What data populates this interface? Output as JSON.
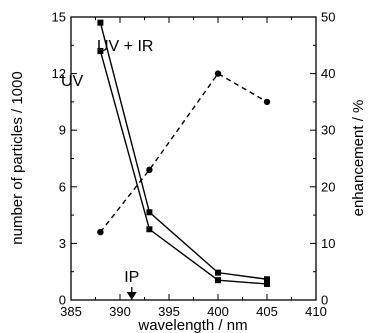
{
  "chart_data": {
    "type": "line",
    "title": "",
    "xlabel": "wavelength / nm",
    "ylabel_left": "number of particles / 1000",
    "ylabel_right": "enhancement / %",
    "xlim": [
      385,
      410
    ],
    "ylim_left": [
      0,
      15
    ],
    "ylim_right": [
      0,
      50
    ],
    "x_ticks": [
      385,
      390,
      395,
      400,
      405,
      410
    ],
    "y_left_ticks": [
      0,
      3,
      6,
      9,
      12,
      15
    ],
    "y_right_ticks": [
      0,
      10,
      20,
      30,
      40,
      50
    ],
    "grid": false,
    "series": [
      {
        "name": "UV + IR",
        "axis": "left",
        "style": "solid",
        "marker": "square",
        "x": [
          388,
          393,
          400,
          405
        ],
        "y": [
          14.7,
          4.65,
          1.45,
          1.1
        ]
      },
      {
        "name": "UV",
        "axis": "left",
        "style": "solid",
        "marker": "square",
        "x": [
          388,
          393,
          400,
          405
        ],
        "y": [
          13.2,
          3.75,
          1.05,
          0.85
        ]
      },
      {
        "axis": "right",
        "style": "dashed",
        "marker": "circle",
        "x": [
          388,
          393,
          400,
          405
        ],
        "y": [
          12,
          23,
          40,
          35
        ]
      }
    ],
    "annotations": [
      {
        "text": "IP",
        "x": 391.2,
        "arrow": "down"
      }
    ]
  },
  "colors": {
    "line": "#000000",
    "background": "#ffffff"
  }
}
